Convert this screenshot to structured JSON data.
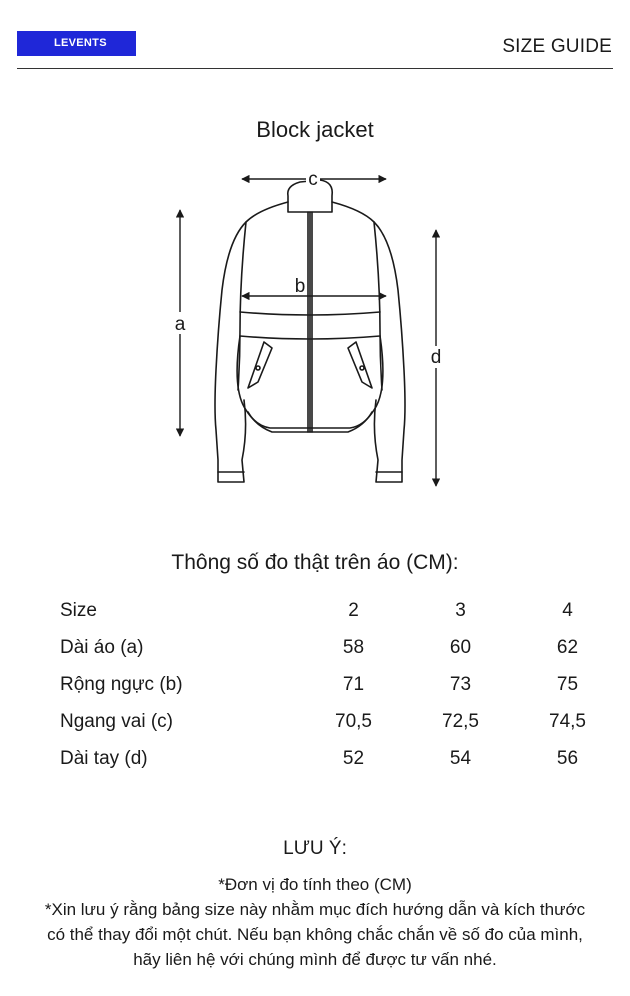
{
  "header": {
    "brand": "LEVENTS",
    "title": "SIZE GUIDE"
  },
  "product": {
    "name": "Block jacket"
  },
  "diagram": {
    "labels": {
      "a": "a",
      "b": "b",
      "c": "c",
      "d": "d"
    }
  },
  "spec": {
    "title": "Thông số đo thật trên áo (CM):",
    "header_label": "Size",
    "sizes": [
      "2",
      "3",
      "4"
    ],
    "rows": [
      {
        "label": "Dài áo (a)",
        "values": [
          "58",
          "60",
          "62"
        ]
      },
      {
        "label": "Rộng ngực (b)",
        "values": [
          "71",
          "73",
          "75"
        ]
      },
      {
        "label": "Ngang vai (c)",
        "values": [
          "70,5",
          "72,5",
          "74,5"
        ]
      },
      {
        "label": "Dài tay (d)",
        "values": [
          "52",
          "54",
          "56"
        ]
      }
    ]
  },
  "note": {
    "title": "LƯU Ý:",
    "line1": "*Đơn vị đo tính theo (CM)",
    "line2": "*Xin lưu ý rằng bảng size này nhằm mục đích hướng dẫn và kích thước có thể thay đổi một chút. Nếu bạn không chắc chắn về số đo của mình, hãy liên hệ với chúng mình để được tư vấn nhé."
  }
}
